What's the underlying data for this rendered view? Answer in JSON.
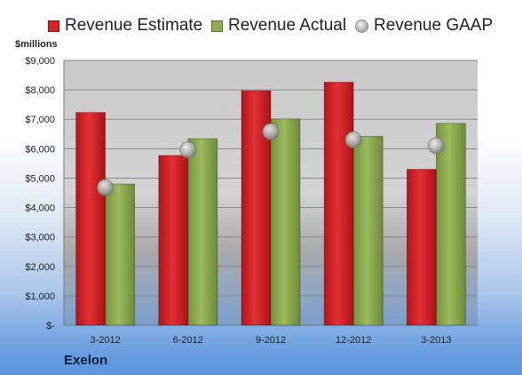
{
  "unit_label": "$millions",
  "brand": "Exelon",
  "legend": [
    {
      "label": "Revenue Estimate",
      "kind": "bar",
      "color": "#d22326"
    },
    {
      "label": "Revenue Actual",
      "kind": "bar",
      "color": "#8fad52"
    },
    {
      "label": "Revenue GAAP",
      "kind": "dot",
      "color": "#b5b5b5"
    }
  ],
  "chart_data": {
    "type": "bar",
    "categories": [
      "3-2012",
      "6-2012",
      "9-2012",
      "12-2012",
      "3-2013"
    ],
    "series": [
      {
        "name": "Revenue Estimate",
        "values": [
          7230,
          5770,
          7970,
          8260,
          5300
        ],
        "color": "#d22326"
      },
      {
        "name": "Revenue Actual",
        "values": [
          4800,
          6340,
          7010,
          6420,
          6860
        ],
        "color": "#8fad52"
      },
      {
        "name": "Revenue GAAP",
        "values": [
          4680,
          5960,
          6580,
          6300,
          6100
        ],
        "color": "#b5b5b5",
        "marker": "circle"
      }
    ],
    "ylabel": "$millions",
    "ylim": [
      0,
      9000
    ],
    "yticks": [
      0,
      1000,
      2000,
      3000,
      4000,
      5000,
      6000,
      7000,
      8000,
      9000
    ],
    "ytick_labels": [
      "$-",
      "$1,000",
      "$2,000",
      "$3,000",
      "$4,000",
      "$5,000",
      "$6,000",
      "$7,000",
      "$8,000",
      "$9,000"
    ],
    "grid": true,
    "legend_position": "top"
  }
}
